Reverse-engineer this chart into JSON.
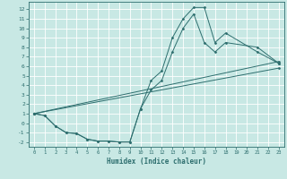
{
  "xlabel": "Humidex (Indice chaleur)",
  "bg_color": "#c8e8e4",
  "grid_color": "#ffffff",
  "line_color": "#2d6e6e",
  "xlim": [
    -0.5,
    23.5
  ],
  "ylim": [
    -2.5,
    12.8
  ],
  "xticks": [
    0,
    1,
    2,
    3,
    4,
    5,
    6,
    7,
    8,
    9,
    10,
    11,
    12,
    13,
    14,
    15,
    16,
    17,
    18,
    19,
    20,
    21,
    22,
    23
  ],
  "yticks": [
    -2,
    -1,
    0,
    1,
    2,
    3,
    4,
    5,
    6,
    7,
    8,
    9,
    10,
    11,
    12
  ],
  "series": [
    {
      "x": [
        0,
        1,
        2,
        3,
        4,
        5,
        6,
        7,
        8,
        9,
        10,
        11,
        12,
        13,
        14,
        15,
        16,
        17,
        18,
        21,
        23
      ],
      "y": [
        1.0,
        0.8,
        -0.3,
        -1.0,
        -1.1,
        -1.7,
        -1.9,
        -1.9,
        -2.0,
        -2.0,
        1.5,
        4.5,
        5.5,
        9.0,
        11.0,
        12.2,
        12.2,
        8.5,
        9.5,
        7.5,
        6.3
      ]
    },
    {
      "x": [
        0,
        1,
        2,
        3,
        4,
        5,
        6,
        7,
        8,
        9,
        10,
        11,
        12,
        13,
        14,
        15,
        16,
        17,
        18,
        21,
        23
      ],
      "y": [
        1.0,
        0.8,
        -0.3,
        -1.0,
        -1.1,
        -1.7,
        -1.9,
        -1.9,
        -2.0,
        -2.0,
        1.5,
        3.5,
        4.5,
        7.5,
        10.0,
        11.5,
        8.5,
        7.5,
        8.5,
        8.0,
        6.3
      ]
    },
    {
      "x": [
        0,
        23
      ],
      "y": [
        1.0,
        6.5
      ]
    },
    {
      "x": [
        0,
        23
      ],
      "y": [
        1.0,
        5.8
      ]
    }
  ]
}
